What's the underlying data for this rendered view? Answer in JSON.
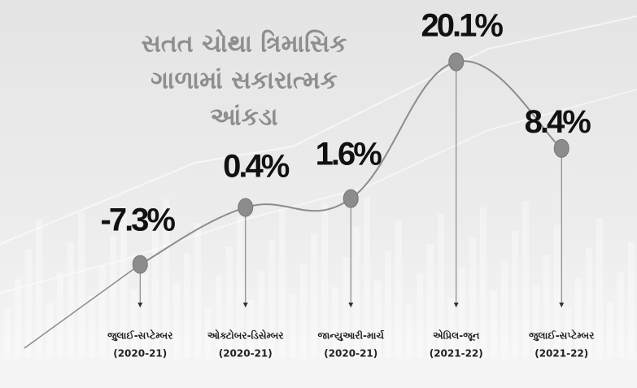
{
  "chart_data": {
    "type": "line",
    "title_lines": [
      "સતત ચોથા ત્રિમાસિક",
      "ગાળામાં સકારાત્મક",
      "આંકડા"
    ],
    "categories": [
      "જુલાઈ-સપ્ટેમ્બર",
      "ઓક્ટોબર-ડિસેમ્બર",
      "જાન્યુઆરી-માર્ચ",
      "એપ્રિલ-જૂન",
      "જુલાઈ-સપ્ટેમ્બર"
    ],
    "periods": [
      "(2020-21)",
      "(2020-21)",
      "(2020-21)",
      "(2021-22)",
      "(2021-22)"
    ],
    "values": [
      -7.3,
      0.4,
      1.6,
      20.1,
      8.4
    ],
    "value_labels": [
      "-7.3%",
      "0.4%",
      "1.6%",
      "20.1%",
      "8.4%"
    ],
    "color": "#8c8c8c",
    "ylim": [
      -15,
      25
    ]
  }
}
